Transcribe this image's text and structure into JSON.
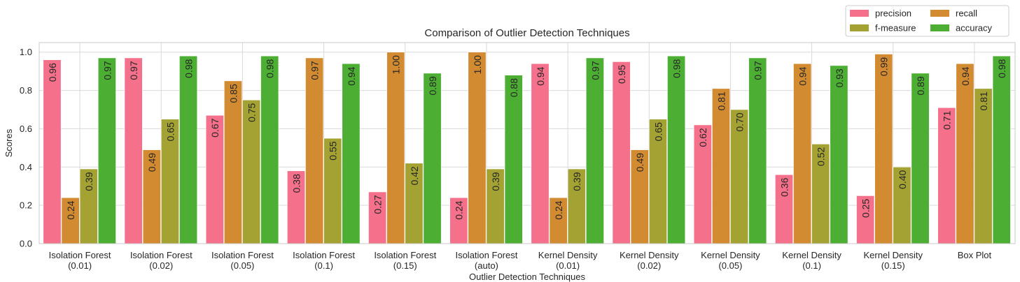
{
  "chart_data": {
    "type": "bar",
    "title": "Comparison of Outlier Detection Techniques",
    "xlabel": "Outlier Detection Techniques",
    "ylabel": "Scores",
    "ylim": [
      0,
      1.05
    ],
    "yticks": [
      "0.0",
      "0.2",
      "0.4",
      "0.6",
      "0.8",
      "1.0"
    ],
    "grid": true,
    "legend_position": "top-right (above plot)",
    "categories": [
      [
        "Isolation Forest",
        "(0.01)"
      ],
      [
        "Isolation Forest",
        "(0.02)"
      ],
      [
        "Isolation Forest",
        "(0.05)"
      ],
      [
        "Isolation Forest",
        "(0.1)"
      ],
      [
        "Isolation Forest",
        "(0.15)"
      ],
      [
        "Isolation Forest",
        "(auto)"
      ],
      [
        "Kernel Density",
        "(0.01)"
      ],
      [
        "Kernel Density",
        "(0.02)"
      ],
      [
        "Kernel Density",
        "(0.05)"
      ],
      [
        "Kernel Density",
        "(0.1)"
      ],
      [
        "Kernel Density",
        "(0.15)"
      ],
      [
        "Box Plot",
        ""
      ]
    ],
    "series": [
      {
        "name": "precision",
        "color": "#f5708a",
        "values": [
          0.96,
          0.97,
          0.67,
          0.38,
          0.27,
          0.24,
          0.94,
          0.95,
          0.62,
          0.36,
          0.25,
          0.71
        ]
      },
      {
        "name": "recall",
        "color": "#d38b31",
        "values": [
          0.24,
          0.49,
          0.85,
          0.97,
          1.0,
          1.0,
          0.24,
          0.49,
          0.81,
          0.94,
          0.99,
          0.94
        ]
      },
      {
        "name": "f-measure",
        "color": "#a3a233",
        "values": [
          0.39,
          0.65,
          0.75,
          0.55,
          0.42,
          0.39,
          0.39,
          0.65,
          0.7,
          0.52,
          0.4,
          0.81
        ]
      },
      {
        "name": "accuracy",
        "color": "#4caf33",
        "values": [
          0.97,
          0.98,
          0.98,
          0.94,
          0.89,
          0.88,
          0.97,
          0.98,
          0.97,
          0.93,
          0.89,
          0.98
        ]
      }
    ]
  }
}
